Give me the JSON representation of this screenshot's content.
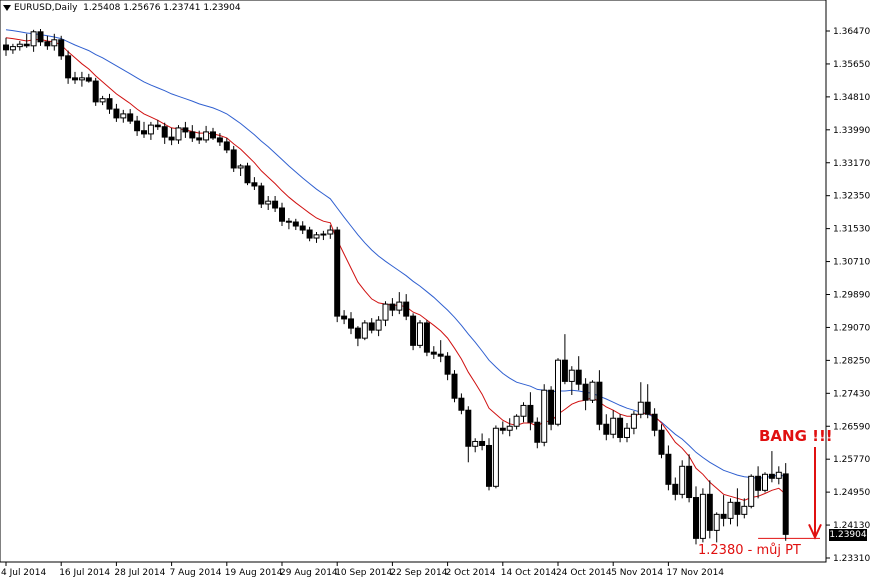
{
  "header": {
    "symbol": "EURUSD,Daily",
    "ohlc": "1.25408 1.25676 1.23741 1.23904"
  },
  "annotations": {
    "bang": "BANG !!!",
    "target": "1.2380 - můj PT"
  },
  "current_price_label": "1.23904",
  "colors": {
    "ma_fast": "#d01010",
    "ma_slow": "#3060d0",
    "annotation": "#e01010"
  },
  "chart_data": {
    "type": "candlestick",
    "symbol": "EURUSD",
    "timeframe": "Daily",
    "y_ticks": [
      "1.36470",
      "1.35650",
      "1.34810",
      "1.33990",
      "1.33170",
      "1.32350",
      "1.31530",
      "1.30710",
      "1.29890",
      "1.29070",
      "1.28250",
      "1.27430",
      "1.26590",
      "1.25770",
      "1.24950",
      "1.24130",
      "1.23310"
    ],
    "ylim": [
      1.2331,
      1.3647
    ],
    "x_ticks": [
      "4 Jul 2014",
      "16 Jul 2014",
      "28 Jul 2014",
      "7 Aug 2014",
      "19 Aug 2014",
      "29 Aug 2014",
      "10 Sep 2014",
      "22 Sep 2014",
      "2 Oct 2014",
      "14 Oct 2014",
      "24 Oct 2014",
      "5 Nov 2014",
      "17 Nov 2014"
    ],
    "x_tick_index": [
      0,
      8,
      16,
      24,
      32,
      40,
      48,
      56,
      64,
      72,
      80,
      88,
      96
    ],
    "target_level": 1.238,
    "last_close": 1.23904,
    "candles": [
      [
        1.3612,
        1.363,
        1.3585,
        1.36
      ],
      [
        1.36,
        1.3615,
        1.359,
        1.3608
      ],
      [
        1.3608,
        1.3622,
        1.3598,
        1.3614
      ],
      [
        1.3614,
        1.364,
        1.3605,
        1.361
      ],
      [
        1.361,
        1.365,
        1.3595,
        1.3645
      ],
      [
        1.3645,
        1.3652,
        1.361,
        1.362
      ],
      [
        1.362,
        1.3635,
        1.36,
        1.361
      ],
      [
        1.361,
        1.364,
        1.3598,
        1.3625
      ],
      [
        1.3625,
        1.3635,
        1.3575,
        1.3585
      ],
      [
        1.3585,
        1.3598,
        1.3515,
        1.353
      ],
      [
        1.353,
        1.3545,
        1.3515,
        1.3525
      ],
      [
        1.3525,
        1.3545,
        1.3508,
        1.353
      ],
      [
        1.353,
        1.354,
        1.3518,
        1.3522
      ],
      [
        1.3522,
        1.353,
        1.346,
        1.347
      ],
      [
        1.347,
        1.3485,
        1.3462,
        1.3478
      ],
      [
        1.3478,
        1.349,
        1.344,
        1.3452
      ],
      [
        1.3452,
        1.3465,
        1.342,
        1.343
      ],
      [
        1.343,
        1.345,
        1.3418,
        1.344
      ],
      [
        1.344,
        1.3452,
        1.3415,
        1.3422
      ],
      [
        1.3422,
        1.3435,
        1.3385,
        1.3398
      ],
      [
        1.3398,
        1.342,
        1.338,
        1.339
      ],
      [
        1.339,
        1.342,
        1.3375,
        1.3412
      ],
      [
        1.3412,
        1.3425,
        1.34,
        1.3408
      ],
      [
        1.3408,
        1.3418,
        1.3365,
        1.3382
      ],
      [
        1.3382,
        1.3405,
        1.3362,
        1.3375
      ],
      [
        1.3375,
        1.3412,
        1.3365,
        1.3405
      ],
      [
        1.3405,
        1.342,
        1.338,
        1.3395
      ],
      [
        1.3395,
        1.3412,
        1.337,
        1.338
      ],
      [
        1.338,
        1.3398,
        1.3365,
        1.3375
      ],
      [
        1.3375,
        1.341,
        1.3368,
        1.3395
      ],
      [
        1.3395,
        1.3405,
        1.3375,
        1.338
      ],
      [
        1.338,
        1.3392,
        1.336,
        1.337
      ],
      [
        1.337,
        1.338,
        1.3342,
        1.335
      ],
      [
        1.335,
        1.336,
        1.3295,
        1.3305
      ],
      [
        1.3305,
        1.3315,
        1.3285,
        1.331
      ],
      [
        1.331,
        1.3318,
        1.3262,
        1.3268
      ],
      [
        1.3268,
        1.3282,
        1.325,
        1.326
      ],
      [
        1.326,
        1.3268,
        1.3205,
        1.3215
      ],
      [
        1.3215,
        1.3235,
        1.32,
        1.3222
      ],
      [
        1.3222,
        1.3235,
        1.3195,
        1.3205
      ],
      [
        1.3205,
        1.3218,
        1.316,
        1.3172
      ],
      [
        1.3172,
        1.318,
        1.3152,
        1.317
      ],
      [
        1.317,
        1.3178,
        1.315,
        1.316
      ],
      [
        1.316,
        1.3172,
        1.314,
        1.315
      ],
      [
        1.315,
        1.3158,
        1.3122,
        1.313
      ],
      [
        1.313,
        1.3145,
        1.3118,
        1.3138
      ],
      [
        1.3138,
        1.3148,
        1.3125,
        1.314
      ],
      [
        1.314,
        1.3162,
        1.3128,
        1.315
      ],
      [
        1.315,
        1.3158,
        1.292,
        1.2935
      ],
      [
        1.2935,
        1.295,
        1.2915,
        1.2928
      ],
      [
        1.2928,
        1.2945,
        1.289,
        1.2905
      ],
      [
        1.2905,
        1.291,
        1.286,
        1.288
      ],
      [
        1.288,
        1.2925,
        1.2875,
        1.2918
      ],
      [
        1.2918,
        1.293,
        1.2892,
        1.29
      ],
      [
        1.29,
        1.2935,
        1.2885,
        1.2925
      ],
      [
        1.2925,
        1.2972,
        1.291,
        1.2965
      ],
      [
        1.2965,
        1.298,
        1.2935,
        1.295
      ],
      [
        1.295,
        1.2995,
        1.294,
        1.297
      ],
      [
        1.297,
        1.299,
        1.2925,
        1.2935
      ],
      [
        1.2935,
        1.2942,
        1.285,
        1.2862
      ],
      [
        1.2862,
        1.2925,
        1.2855,
        1.2918
      ],
      [
        1.2918,
        1.2925,
        1.2835,
        1.2845
      ],
      [
        1.2845,
        1.286,
        1.2828,
        1.284
      ],
      [
        1.284,
        1.2875,
        1.282,
        1.2835
      ],
      [
        1.2835,
        1.2845,
        1.2775,
        1.279
      ],
      [
        1.279,
        1.28,
        1.272,
        1.273
      ],
      [
        1.273,
        1.2742,
        1.269,
        1.27
      ],
      [
        1.27,
        1.271,
        1.257,
        1.261
      ],
      [
        1.261,
        1.263,
        1.2595,
        1.2622
      ],
      [
        1.2622,
        1.2642,
        1.26,
        1.2612
      ],
      [
        1.2612,
        1.263,
        1.25,
        1.251
      ],
      [
        1.251,
        1.2662,
        1.2505,
        1.2655
      ],
      [
        1.2655,
        1.2672,
        1.264,
        1.265
      ],
      [
        1.265,
        1.268,
        1.2635,
        1.266
      ],
      [
        1.266,
        1.269,
        1.2652,
        1.2685
      ],
      [
        1.2685,
        1.272,
        1.267,
        1.2712
      ],
      [
        1.2712,
        1.2745,
        1.265,
        1.267
      ],
      [
        1.267,
        1.2682,
        1.2605,
        1.262
      ],
      [
        1.262,
        1.2765,
        1.261,
        1.275
      ],
      [
        1.275,
        1.276,
        1.265,
        1.2665
      ],
      [
        1.2665,
        1.283,
        1.266,
        1.2825
      ],
      [
        1.2825,
        1.289,
        1.2765,
        1.2772
      ],
      [
        1.2772,
        1.281,
        1.2738,
        1.28
      ],
      [
        1.28,
        1.2835,
        1.275,
        1.2765
      ],
      [
        1.2765,
        1.278,
        1.27,
        1.2725
      ],
      [
        1.2725,
        1.2775,
        1.2718,
        1.277
      ],
      [
        1.277,
        1.28,
        1.265,
        1.2665
      ],
      [
        1.2665,
        1.269,
        1.2625,
        1.264
      ],
      [
        1.264,
        1.27,
        1.263,
        1.268
      ],
      [
        1.268,
        1.269,
        1.262,
        1.2632
      ],
      [
        1.2632,
        1.2668,
        1.262,
        1.2655
      ],
      [
        1.2655,
        1.2698,
        1.264,
        1.269
      ],
      [
        1.269,
        1.277,
        1.268,
        1.272
      ],
      [
        1.272,
        1.2765,
        1.268,
        1.269
      ],
      [
        1.269,
        1.2705,
        1.2635,
        1.265
      ],
      [
        1.265,
        1.2665,
        1.258,
        1.259
      ],
      [
        1.259,
        1.2612,
        1.25,
        1.2515
      ],
      [
        1.2515,
        1.2532,
        1.2475,
        1.249
      ],
      [
        1.249,
        1.2575,
        1.248,
        1.256
      ],
      [
        1.256,
        1.259,
        1.247,
        1.2482
      ],
      [
        1.2482,
        1.251,
        1.2365,
        1.238
      ],
      [
        1.238,
        1.2505,
        1.237,
        1.249
      ],
      [
        1.249,
        1.2525,
        1.238,
        1.24
      ],
      [
        1.24,
        1.2445,
        1.237,
        1.244
      ],
      [
        1.244,
        1.2488,
        1.241,
        1.243
      ],
      [
        1.243,
        1.248,
        1.2415,
        1.247
      ],
      [
        1.247,
        1.2505,
        1.241,
        1.244
      ],
      [
        1.244,
        1.248,
        1.243,
        1.246
      ],
      [
        1.246,
        1.254,
        1.2455,
        1.2535
      ],
      [
        1.2535,
        1.256,
        1.248,
        1.25
      ],
      [
        1.25,
        1.2545,
        1.2495,
        1.254
      ],
      [
        1.254,
        1.2598,
        1.252,
        1.253
      ],
      [
        1.253,
        1.256,
        1.2515,
        1.2545
      ],
      [
        1.2541,
        1.2568,
        1.2374,
        1.239
      ]
    ],
    "ma_fast": [
      1.363,
      1.3628,
      1.3625,
      1.3622,
      1.3625,
      1.3626,
      1.3622,
      1.362,
      1.3612,
      1.3595,
      1.358,
      1.3565,
      1.3552,
      1.3535,
      1.352,
      1.3505,
      1.349,
      1.3478,
      1.3466,
      1.3452,
      1.344,
      1.3432,
      1.3424,
      1.3414,
      1.3405,
      1.3403,
      1.34,
      1.3396,
      1.3392,
      1.3392,
      1.339,
      1.3386,
      1.338,
      1.3365,
      1.3352,
      1.3335,
      1.3318,
      1.3298,
      1.3282,
      1.3266,
      1.3248,
      1.3232,
      1.3218,
      1.3205,
      1.3192,
      1.318,
      1.3172,
      1.3168,
      1.3125,
      1.309,
      1.3055,
      1.302,
      1.2998,
      1.2978,
      1.2968,
      1.2965,
      1.2962,
      1.2962,
      1.2958,
      1.2945,
      1.2938,
      1.2925,
      1.2912,
      1.2898,
      1.288,
      1.2855,
      1.2828,
      1.2795,
      1.2768,
      1.274,
      1.2705,
      1.269,
      1.2675,
      1.2666,
      1.2662,
      1.2668,
      1.2668,
      1.266,
      1.2672,
      1.2672,
      1.269,
      1.2702,
      1.2715,
      1.2722,
      1.2725,
      1.2732,
      1.272,
      1.2708,
      1.27,
      1.269,
      1.2685,
      1.2685,
      1.2692,
      1.2692,
      1.2685,
      1.2668,
      1.2645,
      1.262,
      1.2605,
      1.2585,
      1.2555,
      1.254,
      1.252,
      1.2505,
      1.249,
      1.2485,
      1.248,
      1.2475,
      1.2482,
      1.2485,
      1.2492,
      1.25,
      1.2505,
      1.249
    ],
    "ma_slow": [
      1.365,
      1.3648,
      1.3645,
      1.3642,
      1.364,
      1.3638,
      1.3635,
      1.3632,
      1.3628,
      1.362,
      1.3612,
      1.3605,
      1.3598,
      1.3588,
      1.358,
      1.357,
      1.356,
      1.355,
      1.354,
      1.353,
      1.352,
      1.3512,
      1.3505,
      1.3498,
      1.349,
      1.3484,
      1.3478,
      1.3472,
      1.3465,
      1.346,
      1.3455,
      1.3448,
      1.344,
      1.3428,
      1.3416,
      1.3402,
      1.3388,
      1.3372,
      1.3358,
      1.3342,
      1.3326,
      1.331,
      1.3295,
      1.328,
      1.3266,
      1.3252,
      1.324,
      1.3228,
      1.3205,
      1.3182,
      1.316,
      1.3138,
      1.3118,
      1.31,
      1.3085,
      1.3072,
      1.306,
      1.3048,
      1.3036,
      1.3022,
      1.301,
      1.2996,
      1.2982,
      1.2966,
      1.295,
      1.2932,
      1.2912,
      1.289,
      1.287,
      1.2848,
      1.2825,
      1.2808,
      1.2792,
      1.278,
      1.277,
      1.2765,
      1.276,
      1.2752,
      1.275,
      1.2746,
      1.2748,
      1.2748,
      1.275,
      1.2748,
      1.2745,
      1.2742,
      1.2735,
      1.2728,
      1.272,
      1.2712,
      1.2705,
      1.27,
      1.2695,
      1.269,
      1.2682,
      1.267,
      1.2655,
      1.264,
      1.2628,
      1.2612,
      1.2595,
      1.2582,
      1.257,
      1.256,
      1.255,
      1.2544,
      1.2538,
      1.2534,
      1.2532,
      1.253,
      1.2532,
      1.2535,
      1.2538,
      1.2535
    ]
  }
}
